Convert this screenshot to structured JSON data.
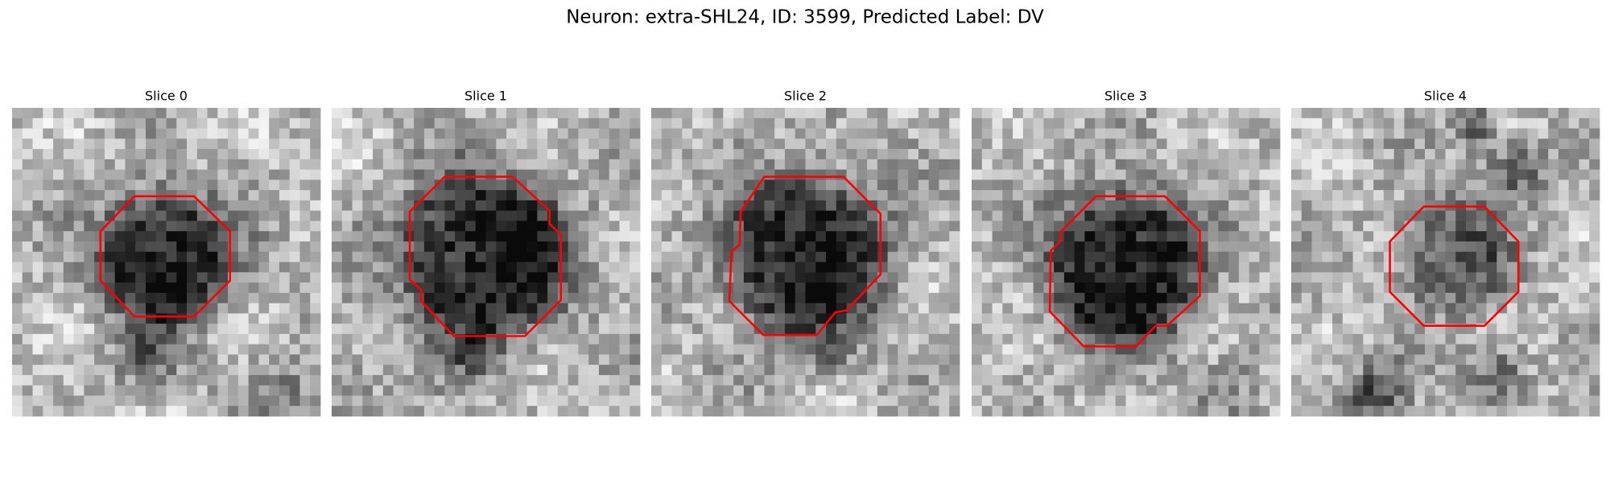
{
  "title": "Neuron: extra-SHL24, ID: 3599, Predicted Label: DV",
  "panels": [
    {
      "title": "Slice 0"
    },
    {
      "title": "Slice 1"
    },
    {
      "title": "Slice 2"
    },
    {
      "title": "Slice 3"
    },
    {
      "title": "Slice 4"
    }
  ]
}
